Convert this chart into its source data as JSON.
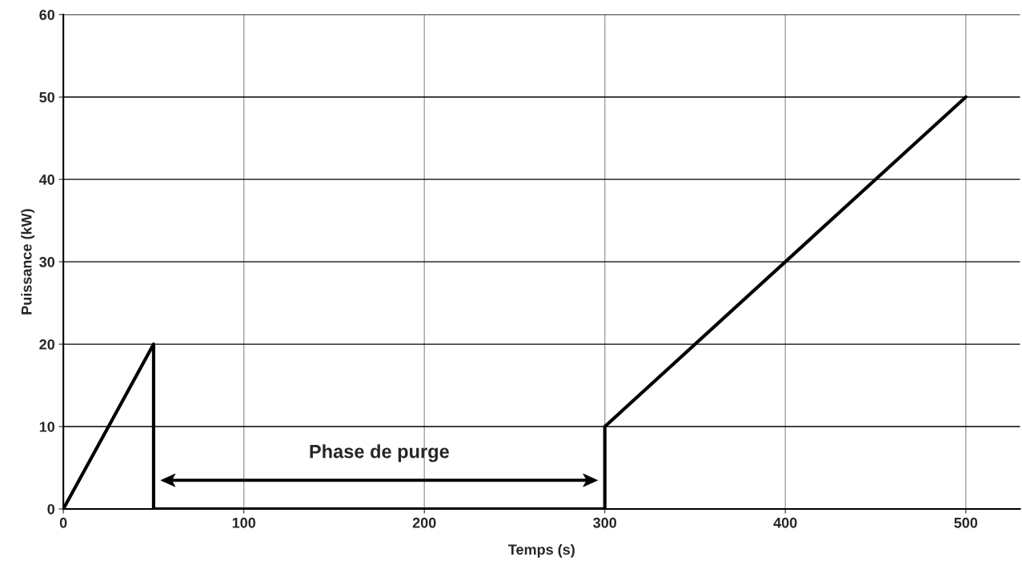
{
  "chart_data": {
    "type": "line",
    "xlabel": "Temps (s)",
    "ylabel": "Puissance (kW)",
    "x": [
      0,
      50,
      50,
      300,
      300,
      500
    ],
    "series": [
      {
        "color": "#000000",
        "values": [
          0,
          20,
          0,
          0,
          10,
          50
        ]
      }
    ],
    "xlim": [
      0,
      530
    ],
    "xticks": [
      0,
      100,
      200,
      300,
      400,
      500
    ],
    "ylim": [
      0,
      60
    ],
    "yticks": [
      0,
      10,
      20,
      30,
      40,
      50,
      60
    ],
    "grid": true,
    "legend": false,
    "annotations": [
      "Phase de purge"
    ]
  }
}
